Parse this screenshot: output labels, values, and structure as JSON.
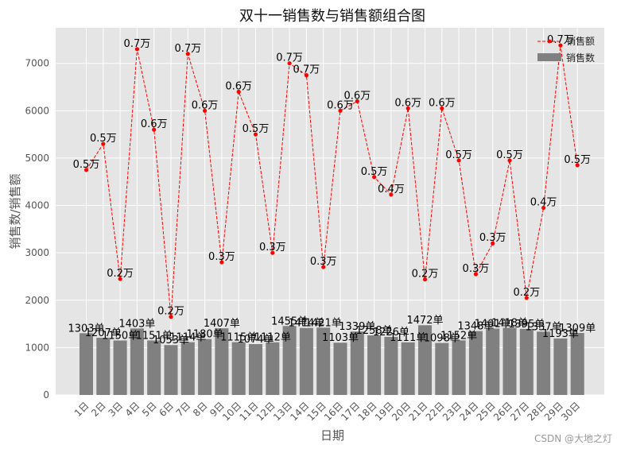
{
  "chart_data": {
    "type": "bar+line",
    "title": "双十一销售数与销售额组合图",
    "xlabel": "日期",
    "ylabel": "销售数/销售额",
    "ylim": [
      0,
      7750
    ],
    "yticks": [
      0,
      1000,
      2000,
      3000,
      4000,
      5000,
      6000,
      7000
    ],
    "grid": true,
    "legend_position": "top-right",
    "categories": [
      "1日",
      "2日",
      "3日",
      "4日",
      "5日",
      "6日",
      "7日",
      "8日",
      "9日",
      "10日",
      "11日",
      "12日",
      "13日",
      "14日",
      "15日",
      "16日",
      "17日",
      "18日",
      "19日",
      "20日",
      "21日",
      "22日",
      "23日",
      "24日",
      "25日",
      "26日",
      "27日",
      "28日",
      "29日",
      "30日"
    ],
    "series": [
      {
        "name": "销售数",
        "kind": "bar",
        "color": "#808080",
        "values": [
          1303,
          1207,
          1150,
          1403,
          1151,
          1053,
          1114,
          1180,
          1407,
          1115,
          1074,
          1112,
          1455,
          1414,
          1421,
          1103,
          1339,
          1258,
          1226,
          1111,
          1472,
          1098,
          1152,
          1348,
          1401,
          1418,
          1395,
          1337,
          1193,
          1309
        ],
        "labels": [
          "1303单",
          "1207单",
          "1150单",
          "1403单",
          "1151单",
          "1053单",
          "1114单",
          "1180单",
          "1407单",
          "1115单",
          "1074单",
          "1112单",
          "1455单",
          "1414单",
          "1421单",
          "1103单",
          "1339单",
          "1258单",
          "1226单",
          "1111单",
          "1472单",
          "1098单",
          "1152单",
          "1348单",
          "1401单",
          "1418单",
          "1395单",
          "1337单",
          "1193单",
          "1309单"
        ]
      },
      {
        "name": "销售额",
        "kind": "line",
        "color": "#ff0000",
        "values": [
          4750,
          5300,
          2450,
          7300,
          5600,
          1650,
          7200,
          6000,
          2800,
          6400,
          5500,
          3000,
          7000,
          6750,
          2700,
          6000,
          6200,
          4600,
          4230,
          6050,
          2440,
          6050,
          4950,
          2550,
          3200,
          4950,
          2050,
          3950,
          7380,
          4850
        ],
        "labels": [
          "0.5万",
          "0.5万",
          "0.2万",
          "0.7万",
          "0.6万",
          "0.2万",
          "0.7万",
          "0.6万",
          "0.3万",
          "0.6万",
          "0.5万",
          "0.3万",
          "0.7万",
          "0.7万",
          "0.3万",
          "0.6万",
          "0.6万",
          "0.5万",
          "0.4万",
          "0.6万",
          "0.2万",
          "0.6万",
          "0.5万",
          "0.3万",
          "0.3万",
          "0.5万",
          "0.2万",
          "0.4万",
          "0.7万",
          "0.5万"
        ]
      }
    ]
  },
  "watermark": "CSDN @大地之灯"
}
